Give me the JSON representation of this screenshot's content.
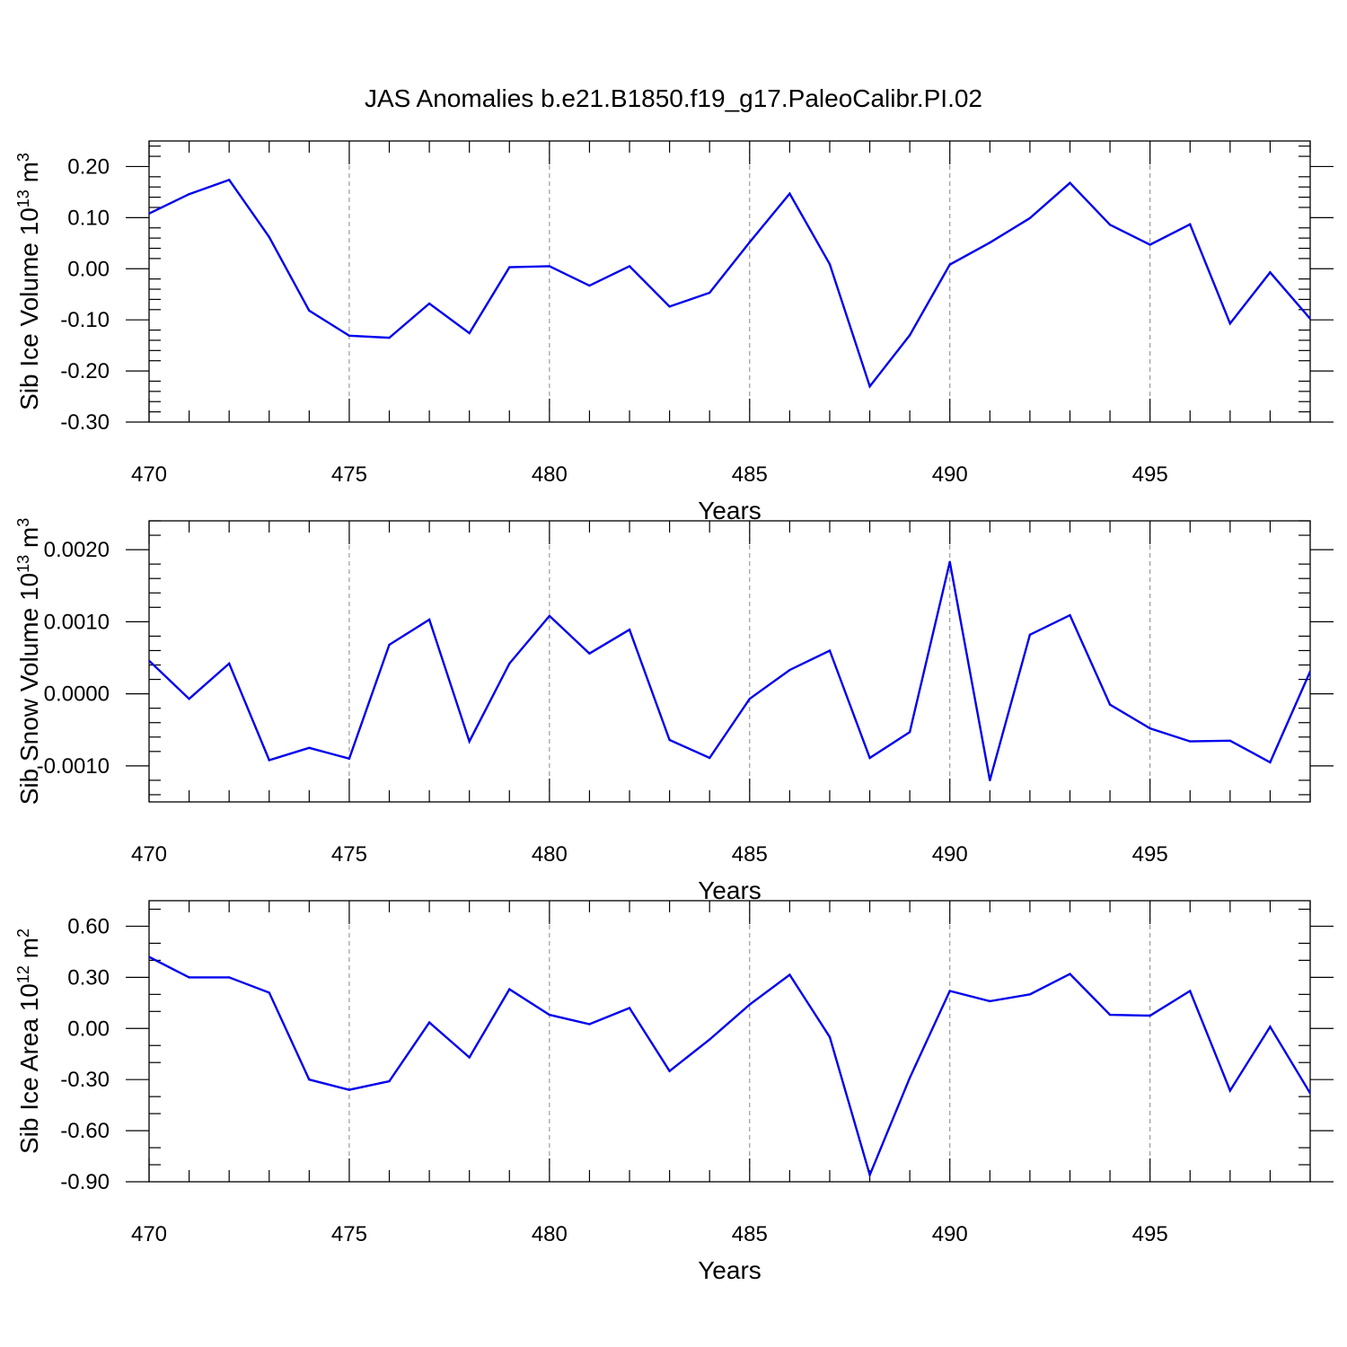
{
  "title": "JAS Anomalies b.e21.B1850.f19_g17.PaleoCalibr.PI.02",
  "colors": {
    "line": "#0000ee",
    "grid": "#888888"
  },
  "chart_data": [
    {
      "type": "line",
      "ylabel_main": "Sib Ice Volume 10",
      "ylabel_sup": "13",
      "ylabel_unit": " m",
      "ylabel_unit_sup": "3",
      "xlabel": "Years",
      "xlim": [
        470,
        499
      ],
      "ylim": [
        -0.3,
        0.25
      ],
      "x_ticks": [
        470,
        475,
        480,
        485,
        490,
        495
      ],
      "x_tick_labels": [
        "470",
        "475",
        "480",
        "485",
        "490",
        "495"
      ],
      "y_ticks": [
        0.2,
        0.1,
        0.0,
        -0.1,
        -0.2,
        -0.3
      ],
      "y_tick_labels": [
        "0.20",
        "0.10",
        "0.00",
        "-0.10",
        "-0.20",
        "-0.30"
      ],
      "y_minor_step": 0.02,
      "grid": "x-dashed",
      "x": [
        470,
        471,
        472,
        473,
        474,
        475,
        476,
        477,
        478,
        479,
        480,
        481,
        482,
        483,
        484,
        485,
        486,
        487,
        488,
        489,
        490,
        491,
        492,
        493,
        494,
        495,
        496,
        497,
        498,
        499
      ],
      "y": [
        0.108,
        0.146,
        0.174,
        0.062,
        -0.082,
        -0.131,
        -0.135,
        -0.068,
        -0.126,
        0.003,
        0.005,
        -0.033,
        0.005,
        -0.074,
        -0.047,
        0.052,
        0.147,
        0.009,
        -0.23,
        -0.13,
        0.008,
        0.051,
        0.099,
        0.168,
        0.086,
        0.047,
        0.087,
        -0.107,
        -0.007,
        -0.098
      ]
    },
    {
      "type": "line",
      "ylabel_main": "Sib Snow Volume 10",
      "ylabel_sup": "13",
      "ylabel_unit": " m",
      "ylabel_unit_sup": "3",
      "xlabel": "Years",
      "xlim": [
        470,
        499
      ],
      "ylim": [
        -0.0015,
        0.0024
      ],
      "x_ticks": [
        470,
        475,
        480,
        485,
        490,
        495
      ],
      "x_tick_labels": [
        "470",
        "475",
        "480",
        "485",
        "490",
        "495"
      ],
      "y_ticks": [
        0.002,
        0.001,
        0.0,
        -0.001
      ],
      "y_tick_labels": [
        "0.0020",
        "0.0010",
        "0.0000",
        "-0.0010"
      ],
      "y_minor_step": 0.0002,
      "grid": "x-dashed",
      "x": [
        470,
        471,
        472,
        473,
        474,
        475,
        476,
        477,
        478,
        479,
        480,
        481,
        482,
        483,
        484,
        485,
        486,
        487,
        488,
        489,
        490,
        491,
        492,
        493,
        494,
        495,
        496,
        497,
        498,
        499
      ],
      "y": [
        0.00046,
        -7e-05,
        0.00042,
        -0.00092,
        -0.00075,
        -0.0009,
        0.00068,
        0.00103,
        -0.00066,
        0.00042,
        0.00108,
        0.00056,
        0.00089,
        -0.00064,
        -0.00089,
        -7e-05,
        0.00033,
        0.0006,
        -0.00089,
        -0.00053,
        0.00183,
        -0.0012,
        0.00082,
        0.00109,
        -0.00015,
        -0.00048,
        -0.00066,
        -0.00065,
        -0.00095,
        0.00031
      ]
    },
    {
      "type": "line",
      "ylabel_main": "Sib Ice Area 10",
      "ylabel_sup": "12",
      "ylabel_unit": " m",
      "ylabel_unit_sup": "2",
      "xlabel": "Years",
      "xlim": [
        470,
        499
      ],
      "ylim": [
        -0.9,
        0.75
      ],
      "x_ticks": [
        470,
        475,
        480,
        485,
        490,
        495
      ],
      "x_tick_labels": [
        "470",
        "475",
        "480",
        "485",
        "490",
        "495"
      ],
      "y_ticks": [
        0.6,
        0.3,
        0.0,
        -0.3,
        -0.6,
        -0.9
      ],
      "y_tick_labels": [
        "0.60",
        "0.30",
        "0.00",
        "-0.30",
        "-0.60",
        "-0.90"
      ],
      "y_minor_step": 0.1,
      "grid": "x-dashed",
      "x": [
        470,
        471,
        472,
        473,
        474,
        475,
        476,
        477,
        478,
        479,
        480,
        481,
        482,
        483,
        484,
        485,
        486,
        487,
        488,
        489,
        490,
        491,
        492,
        493,
        494,
        495,
        496,
        497,
        498,
        499
      ],
      "y": [
        0.42,
        0.3,
        0.3,
        0.21,
        -0.3,
        -0.36,
        -0.31,
        0.035,
        -0.17,
        0.23,
        0.08,
        0.025,
        0.12,
        -0.25,
        -0.065,
        0.14,
        0.315,
        -0.05,
        -0.86,
        -0.29,
        0.22,
        0.16,
        0.2,
        0.32,
        0.08,
        0.075,
        0.22,
        -0.365,
        0.01,
        -0.38
      ]
    }
  ]
}
